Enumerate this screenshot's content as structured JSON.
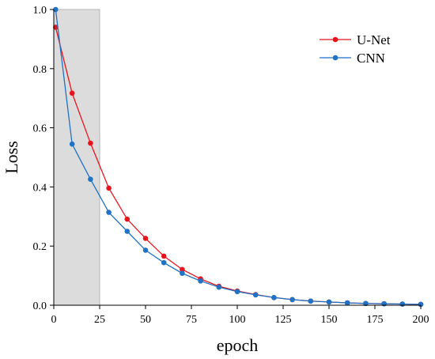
{
  "chart_data": {
    "type": "line",
    "title": "",
    "xlabel": "epoch",
    "ylabel": "Loss",
    "xlim": [
      0,
      200
    ],
    "ylim": [
      0,
      1.0
    ],
    "xticks": [
      "0",
      "25",
      "50",
      "75",
      "100",
      "125",
      "150",
      "175",
      "200"
    ],
    "yticks": [
      "0.0",
      "0.2",
      "0.4",
      "0.6",
      "0.8",
      "1.0"
    ],
    "grid": false,
    "legend_position": "top-right",
    "highlight_region": {
      "x_start": 0,
      "x_end": 25,
      "color": "#dcdcdc"
    },
    "series": [
      {
        "name": "U-Net",
        "color": "#e8141c",
        "x": [
          1,
          10,
          20,
          30,
          40,
          50,
          60,
          70,
          80,
          90,
          100,
          110,
          120,
          130,
          140,
          150,
          160,
          170,
          180,
          190,
          200
        ],
        "y": [
          0.94,
          0.717,
          0.548,
          0.396,
          0.291,
          0.226,
          0.166,
          0.121,
          0.089,
          0.064,
          0.048,
          0.036,
          0.026,
          0.019,
          0.014,
          0.011,
          0.008,
          0.006,
          0.005,
          0.004,
          0.003
        ]
      },
      {
        "name": "CNN",
        "color": "#1f72c4",
        "x": [
          1,
          10,
          20,
          30,
          40,
          50,
          60,
          70,
          80,
          90,
          100,
          110,
          120,
          130,
          140,
          150,
          160,
          170,
          180,
          190,
          200
        ],
        "y": [
          1.0,
          0.545,
          0.426,
          0.314,
          0.25,
          0.186,
          0.144,
          0.108,
          0.082,
          0.061,
          0.046,
          0.035,
          0.026,
          0.019,
          0.014,
          0.011,
          0.008,
          0.006,
          0.005,
          0.004,
          0.003
        ]
      }
    ]
  }
}
